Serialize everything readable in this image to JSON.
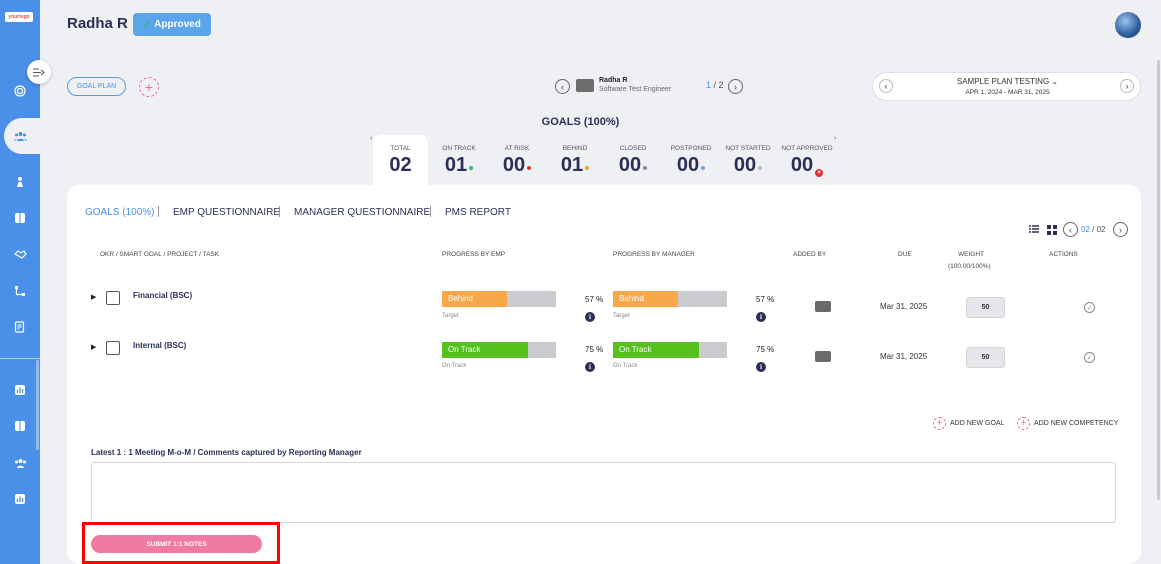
{
  "sidebar": {
    "logo_text": "yourlogo",
    "icons": [
      "target-icon",
      "team-icon",
      "person-icon",
      "book-icon",
      "handshake-icon",
      "org-chart-icon",
      "document-edit-icon",
      "bar-chart-icon",
      "book-icon",
      "team-icon",
      "bar-chart-icon"
    ]
  },
  "header": {
    "employee_name": "Radha R",
    "status_badge": "Approved",
    "goal_plan_label": "GOAL PLAN",
    "employee_mini": {
      "name": "Radha R",
      "role": "Software Test Engineer"
    },
    "pager": {
      "current": "1",
      "separator": " / ",
      "total": "2"
    },
    "plan": {
      "title": "SAMPLE PLAN TESTING",
      "dates": "APR 1, 2024 - MAR 31, 2025"
    }
  },
  "goals_summary": {
    "title": "GOALS (100%)",
    "stats": [
      {
        "label": "TOTAL",
        "value": "02",
        "dot_color": ""
      },
      {
        "label": "ON TRACK",
        "value": "01",
        "dot_color": "#2eb872"
      },
      {
        "label": "AT RISK",
        "value": "00",
        "dot_color": "#e5312f"
      },
      {
        "label": "BEHIND",
        "value": "01",
        "dot_color": "#f4a32c"
      },
      {
        "label": "CLOSED",
        "value": "00",
        "dot_color": "#8a8a8a"
      },
      {
        "label": "POSTPONED",
        "value": "00",
        "dot_color": "#6aa8e8"
      },
      {
        "label": "NOT STARTED",
        "value": "00",
        "dot_color": "#bdbdc7"
      },
      {
        "label": "NOT APPROVED",
        "value": "00",
        "dot_color": "#e5312f"
      }
    ]
  },
  "tabs": [
    "GOALS (100%)",
    "EMP QUESTIONNAIRE",
    "MANAGER QUESTIONNAIRE",
    "PMS REPORT"
  ],
  "table_pager": {
    "current": "02",
    "separator": " / ",
    "total": "02"
  },
  "table": {
    "columns": {
      "task": "OKR / SMART GOAL / PROJECT / TASK",
      "progress_emp": "PROGRESS BY EMP",
      "progress_mgr": "PROGRESS BY MANAGER",
      "added_by": "ADDED BY",
      "due": "DUE",
      "weight": "WEIGHT",
      "weight_sub": "(100.00/100%)",
      "actions": "ACTIONS"
    },
    "rows": [
      {
        "name": "Financial (BSC)",
        "emp": {
          "status": "Behind",
          "progress": 0.57,
          "pct": "57",
          "unit": "%",
          "sub": "Target",
          "color": "#f7a84a"
        },
        "mgr": {
          "status": "Behind",
          "progress": 0.57,
          "pct": "57",
          "unit": "%",
          "sub": "Target",
          "color": "#f7a84a"
        },
        "due": "Mar 31, 2025",
        "weight": "50"
      },
      {
        "name": "Internal (BSC)",
        "emp": {
          "status": "On Track",
          "progress": 0.75,
          "pct": "75",
          "unit": "%",
          "sub": "On Track",
          "color": "#55c11d"
        },
        "mgr": {
          "status": "On Track",
          "progress": 0.75,
          "pct": "75",
          "unit": "%",
          "sub": "On Track",
          "color": "#55c11d"
        },
        "due": "Mar 31, 2025",
        "weight": "50"
      }
    ]
  },
  "actions": {
    "add_goal": "ADD NEW GOAL",
    "add_competency": "ADD NEW COMPETENCY"
  },
  "mom": {
    "label": "Latest 1 : 1 Meeting M-o-M / Comments captured by Reporting Manager",
    "value": ""
  },
  "submit_label": "SUBMIT 1:1 NOTES"
}
